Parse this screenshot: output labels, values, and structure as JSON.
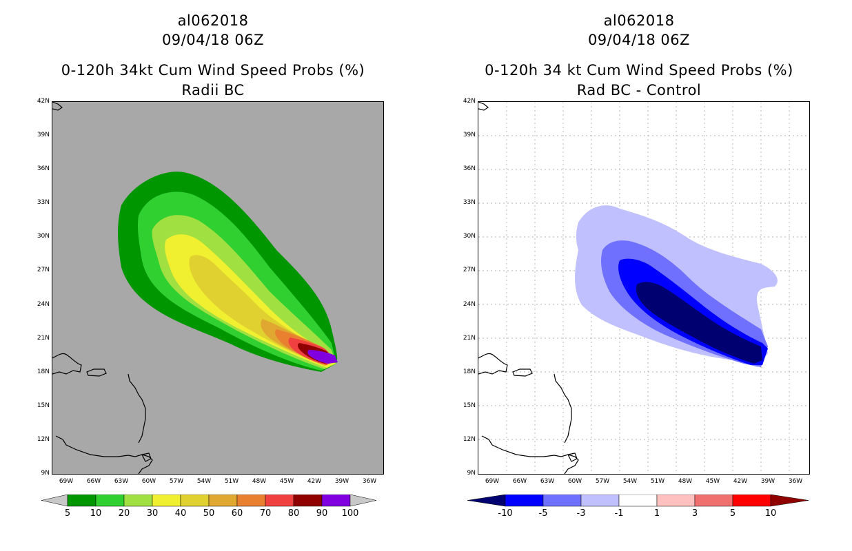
{
  "left_panel": {
    "storm_id": "al062018",
    "datetime": "09/04/18 06Z",
    "title": "0-120h 34kt Cum Wind Speed Probs (%)",
    "subtitle": "Radii BC",
    "colorbar": {
      "labels": [
        "5",
        "10",
        "20",
        "30",
        "40",
        "50",
        "60",
        "70",
        "80",
        "90",
        "100"
      ],
      "colors": [
        "#009600",
        "#30d030",
        "#a0e040",
        "#f0f030",
        "#e0d030",
        "#e0a830",
        "#e88030",
        "#f04040",
        "#900000",
        "#8000e0"
      ]
    }
  },
  "right_panel": {
    "storm_id": "al062018",
    "datetime": "09/04/18 06Z",
    "title": "0-120h 34 kt Cum Wind Speed Probs (%)",
    "subtitle": "Rad BC - Control",
    "colorbar": {
      "labels": [
        "-10",
        "-5",
        "-3",
        "-1",
        "1",
        "3",
        "5",
        "10"
      ],
      "colors": [
        "#000070",
        "#0000ff",
        "#7070ff",
        "#c0c0ff",
        "#ffffff",
        "#ffc0c0",
        "#f07070",
        "#ff0000",
        "#900000"
      ]
    }
  },
  "axes": {
    "lat_labels": [
      "42N",
      "39N",
      "36N",
      "33N",
      "30N",
      "27N",
      "24N",
      "21N",
      "18N",
      "15N",
      "12N",
      "9N"
    ],
    "lon_labels": [
      "69W",
      "66W",
      "63W",
      "60W",
      "57W",
      "54W",
      "51W",
      "48W",
      "45W",
      "42W",
      "39W",
      "36W"
    ]
  },
  "colors": {
    "map_background_left": "#a8a8a8",
    "map_background_right": "#ffffff"
  }
}
